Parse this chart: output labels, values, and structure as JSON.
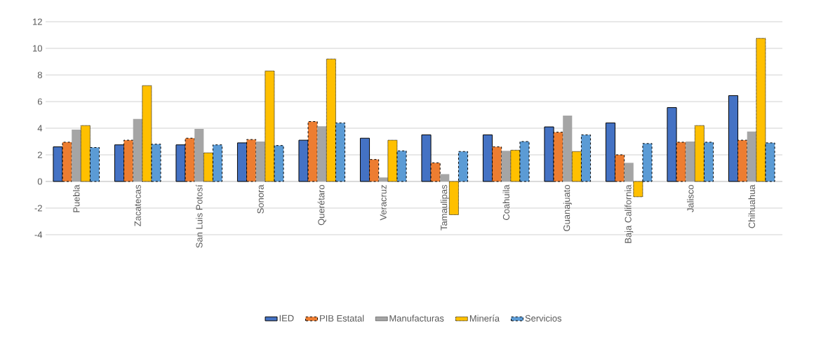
{
  "chart_data": {
    "type": "bar",
    "categories": [
      "Puebla",
      "Zacatecas",
      "San Luis Potosí",
      "Sonora",
      "Querétaro",
      "Veracruz",
      "Tamaulipas",
      "Coahuila",
      "Guanajuato",
      "Baja California",
      "Jalisco",
      "Chihuahua"
    ],
    "series": [
      {
        "name": "IED",
        "color": "#4472c4",
        "line_style": "solid",
        "values": [
          2.6,
          2.75,
          2.75,
          2.9,
          3.1,
          3.25,
          3.5,
          3.5,
          4.1,
          4.4,
          5.55,
          6.45
        ]
      },
      {
        "name": "PIB Estatal",
        "color": "#ed7d31",
        "line_style": "dashed",
        "values": [
          2.95,
          3.1,
          3.25,
          3.15,
          4.5,
          1.65,
          1.4,
          2.6,
          3.7,
          2.0,
          2.95,
          3.1
        ]
      },
      {
        "name": "Manufacturas",
        "color": "#a5a5a5",
        "values": [
          3.9,
          4.7,
          3.95,
          3.0,
          4.15,
          0.3,
          0.55,
          2.3,
          4.95,
          1.4,
          3.0,
          3.75
        ]
      },
      {
        "name": "Minería",
        "color": "#ffc000",
        "line_style": "dotted",
        "values": [
          4.2,
          7.2,
          2.15,
          8.3,
          9.2,
          3.1,
          -2.5,
          2.35,
          2.25,
          -1.15,
          4.2,
          10.75
        ]
      },
      {
        "name": "Servicios",
        "color": "#5b9bd5",
        "line_style": "dashed",
        "values": [
          2.55,
          2.8,
          2.75,
          2.7,
          4.4,
          2.3,
          2.25,
          3.0,
          3.5,
          2.85,
          2.95,
          2.9
        ]
      }
    ],
    "ylim": [
      -4,
      12
    ],
    "yticks": [
      -4,
      -2,
      0,
      2,
      4,
      6,
      8,
      10,
      12
    ],
    "grid": "y",
    "legend": "bottom"
  }
}
